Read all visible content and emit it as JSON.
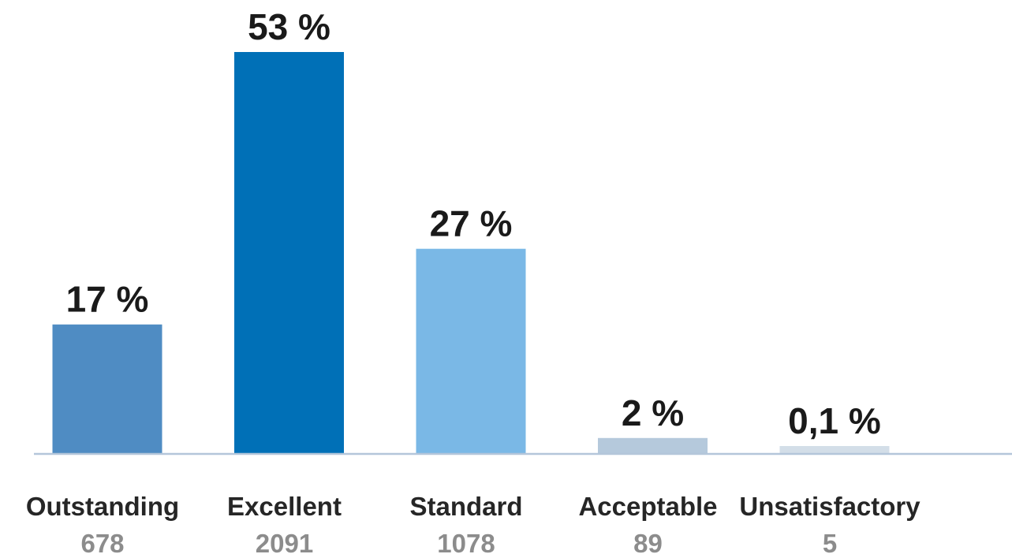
{
  "chart_data": {
    "type": "bar",
    "title": "",
    "xlabel": "",
    "ylabel": "",
    "ylim": [
      0,
      53
    ],
    "grid": false,
    "legend": "none",
    "axis_color": "#b4c6da",
    "categories": [
      {
        "label": "Outstanding",
        "count": "678",
        "value": 17,
        "value_label": "17 %",
        "color": "#4f8cc3"
      },
      {
        "label": "Excellent",
        "count": "2091",
        "value": 53,
        "value_label": "53 %",
        "color": "#0070b7"
      },
      {
        "label": "Standard",
        "count": "1078",
        "value": 27,
        "value_label": "27 %",
        "color": "#7ab8e6"
      },
      {
        "label": "Acceptable",
        "count": "89",
        "value": 2,
        "value_label": "2 %",
        "color": "#b5c9dc"
      },
      {
        "label": "Unsatisfactory",
        "count": "5",
        "value": 0.1,
        "value_label": "0,1 %",
        "color": "#d3dee8"
      }
    ]
  }
}
